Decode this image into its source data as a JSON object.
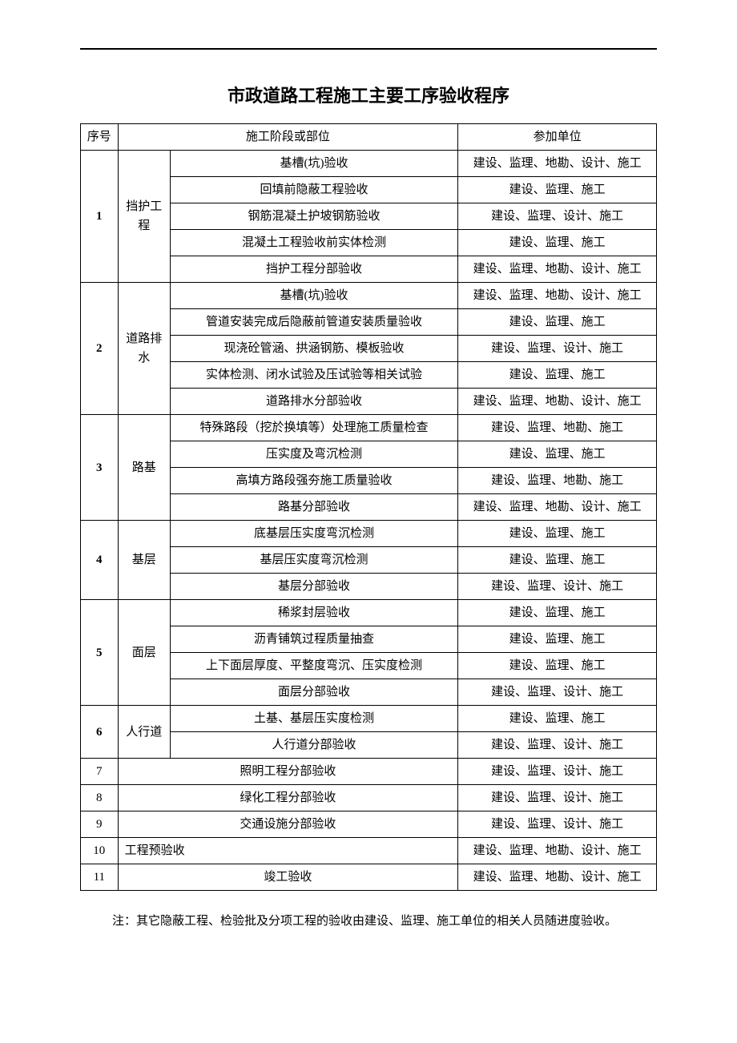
{
  "title": "市政道路工程施工主要工序验收程序",
  "header": {
    "seq": "序号",
    "stage": "施工阶段或部位",
    "unit": "参加单位"
  },
  "rows": [
    {
      "seq": "1",
      "cat": "挡护工程",
      "catRows": 5,
      "items": [
        {
          "stage": "基槽(坑)验收",
          "unit": "建设、监理、地勘、设计、施工"
        },
        {
          "stage": "回填前隐蔽工程验收",
          "unit": "建设、监理、施工"
        },
        {
          "stage": "钢筋混凝土护坡钢筋验收",
          "unit": "建设、监理、设计、施工"
        },
        {
          "stage": "混凝土工程验收前实体检测",
          "unit": "建设、监理、施工"
        },
        {
          "stage": "挡护工程分部验收",
          "unit": "建设、监理、地勘、设计、施工"
        }
      ]
    },
    {
      "seq": "2",
      "cat": "道路排水",
      "catRows": 5,
      "items": [
        {
          "stage": "基槽(坑)验收",
          "unit": "建设、监理、地勘、设计、施工"
        },
        {
          "stage": "管道安装完成后隐蔽前管道安装质量验收",
          "unit": "建设、监理、施工"
        },
        {
          "stage": "现浇砼管涵、拱涵钢筋、模板验收",
          "unit": "建设、监理、设计、施工"
        },
        {
          "stage": "实体检测、闭水试验及压试验等相关试验",
          "unit": "建设、监理、施工"
        },
        {
          "stage": "道路排水分部验收",
          "unit": "建设、监理、地勘、设计、施工"
        }
      ]
    },
    {
      "seq": "3",
      "cat": "路基",
      "catRows": 4,
      "items": [
        {
          "stage": "特殊路段（挖於换填等）处理施工质量检查",
          "unit": "建设、监理、地勘、施工"
        },
        {
          "stage": "压实度及弯沉检测",
          "unit": "建设、监理、施工"
        },
        {
          "stage": "高填方路段强夯施工质量验收",
          "unit": "建设、监理、地勘、施工"
        },
        {
          "stage": "路基分部验收",
          "unit": "建设、监理、地勘、设计、施工"
        }
      ]
    },
    {
      "seq": "4",
      "cat": "基层",
      "catRows": 3,
      "items": [
        {
          "stage": "底基层压实度弯沉检测",
          "unit": "建设、监理、施工"
        },
        {
          "stage": "基层压实度弯沉检测",
          "unit": "建设、监理、施工"
        },
        {
          "stage": "基层分部验收",
          "unit": "建设、监理、设计、施工"
        }
      ]
    },
    {
      "seq": "5",
      "cat": "面层",
      "catRows": 4,
      "items": [
        {
          "stage": "稀浆封层验收",
          "unit": "建设、监理、施工"
        },
        {
          "stage": "沥青铺筑过程质量抽查",
          "unit": "建设、监理、施工"
        },
        {
          "stage": "上下面层厚度、平整度弯沉、压实度检测",
          "unit": "建设、监理、施工"
        },
        {
          "stage": "面层分部验收",
          "unit": "建设、监理、设计、施工"
        }
      ]
    },
    {
      "seq": "6",
      "cat": "人行道",
      "catRows": 2,
      "items": [
        {
          "stage": "土基、基层压实度检测",
          "unit": "建设、监理、施工"
        },
        {
          "stage": "人行道分部验收",
          "unit": "建设、监理、设计、施工"
        }
      ]
    }
  ],
  "simpleRows": [
    {
      "seq": "7",
      "stage": "照明工程分部验收",
      "unit": "建设、监理、设计、施工"
    },
    {
      "seq": "8",
      "stage": "绿化工程分部验收",
      "unit": "建设、监理、设计、施工"
    },
    {
      "seq": "9",
      "stage": "交通设施分部验收",
      "unit": "建设、监理、设计、施工"
    },
    {
      "seq": "10",
      "stage": "工程预验收",
      "unit": "建设、监理、地勘、设计、施工",
      "stageAlign": "left"
    },
    {
      "seq": "11",
      "stage": "竣工验收",
      "unit": "建设、监理、地勘、设计、施工"
    }
  ],
  "note": "注：其它隐蔽工程、检验批及分项工程的验收由建设、监理、施工单位的相关人员随进度验收。"
}
